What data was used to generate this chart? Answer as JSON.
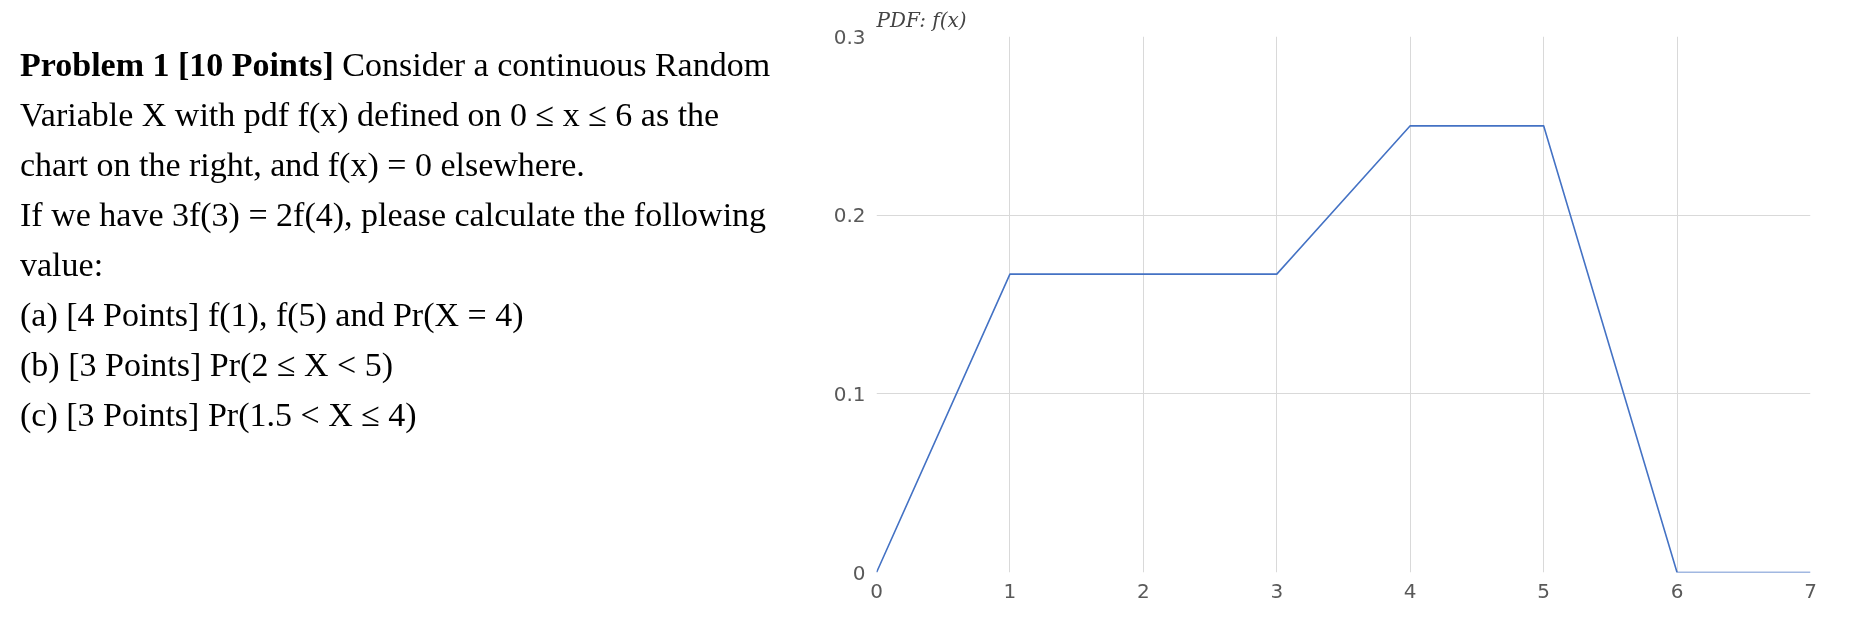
{
  "chart_data": {
    "type": "line",
    "ylabel": "PDF: f(x)",
    "annotations": [
      "Problem 1 [10 Points]",
      "Consider a continuous Random Variable X with pdf f(x) defined on 0 ≤ x ≤ 6 as the chart on the right, and f(x) = 0 elsewhere.",
      "If we have 3f(3) = 2f(4), please calculate the following value:",
      "(a) [4 Points] f(1), f(5) and Pr(X = 4)",
      "(b) [3 Points] Pr(2 ≤ X < 5)",
      "(c) [3 Points] Pr(1.5 < X ≤ 4)"
    ],
    "x": [
      0,
      1,
      2,
      3,
      4,
      5,
      6,
      7
    ],
    "series": [
      {
        "color": "#4472c4",
        "values": [
          0,
          0.167,
          0.167,
          0.167,
          0.25,
          0.25,
          0,
          0
        ]
      }
    ],
    "xlim": [
      0,
      7
    ],
    "xticks": [
      0,
      1,
      2,
      3,
      4,
      5,
      6,
      7
    ],
    "ylim": [
      0,
      0.3
    ],
    "yticks": [
      0,
      0.1,
      0.2,
      0.3
    ],
    "grid": true,
    "marker": "none",
    "line_style": "solid"
  }
}
